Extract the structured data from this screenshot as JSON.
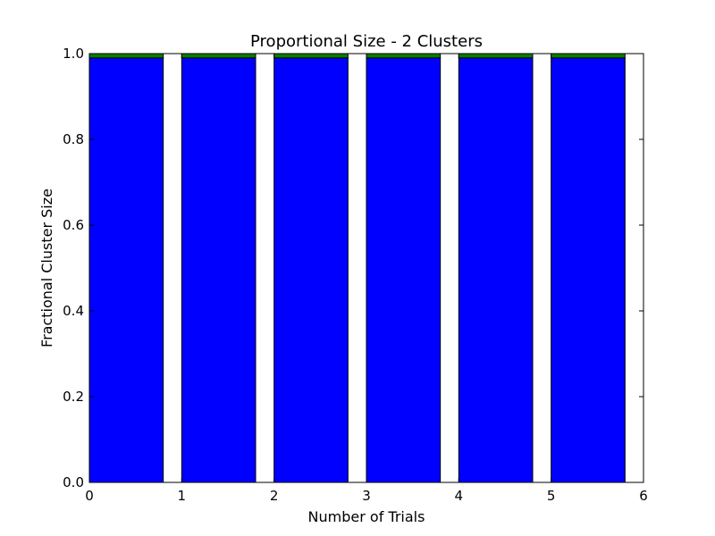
{
  "chart_data": {
    "type": "bar",
    "stacked": true,
    "title": "Proportional Size - 2 Clusters",
    "xlabel": "Number of Trials",
    "ylabel": "Fractional Cluster Size",
    "xlim": [
      0,
      6
    ],
    "ylim": [
      0,
      1.0
    ],
    "bar_width": 0.8,
    "x": [
      0,
      1,
      2,
      3,
      4,
      5
    ],
    "xticks": [
      "0",
      "1",
      "2",
      "3",
      "4",
      "5",
      "6"
    ],
    "yticks": [
      "0.0",
      "0.2",
      "0.4",
      "0.6",
      "0.8",
      "1.0"
    ],
    "grid": false,
    "series": [
      {
        "values": [
          0.99,
          0.99,
          0.99,
          0.99,
          0.99,
          0.99
        ],
        "color": "#0000ff"
      },
      {
        "values": [
          0.01,
          0.01,
          0.01,
          0.01,
          0.01,
          0.01
        ],
        "color": "#008000"
      }
    ]
  }
}
